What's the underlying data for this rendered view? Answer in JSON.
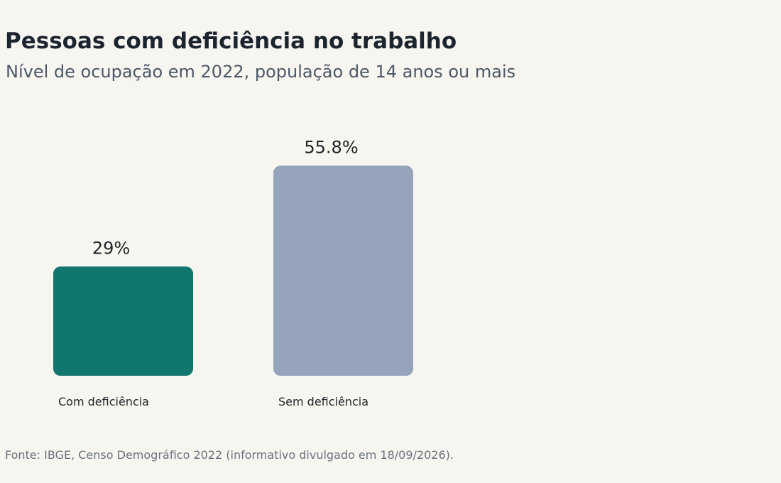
{
  "title": "Pessoas com deficiência no trabalho",
  "subtitle": "Nível de ocupação em 2022, população de 14 anos ou mais",
  "source": "Fonte: IBGE, Censo Demográfico 2022 (informativo divulgado em 18/09/2026).",
  "chart_data": {
    "type": "bar",
    "title": "Pessoas com deficiência no trabalho",
    "subtitle": "Nível de ocupação em 2022, população de 14 anos ou mais",
    "categories": [
      "Com deficiência",
      "Sem deficiência"
    ],
    "values": [
      29,
      55.8
    ],
    "value_labels": [
      "29%",
      "55.8%"
    ],
    "colors": [
      "#10766e",
      "#95a4ba"
    ],
    "ylim": [
      0,
      100
    ],
    "grid": false,
    "legend": "none"
  }
}
